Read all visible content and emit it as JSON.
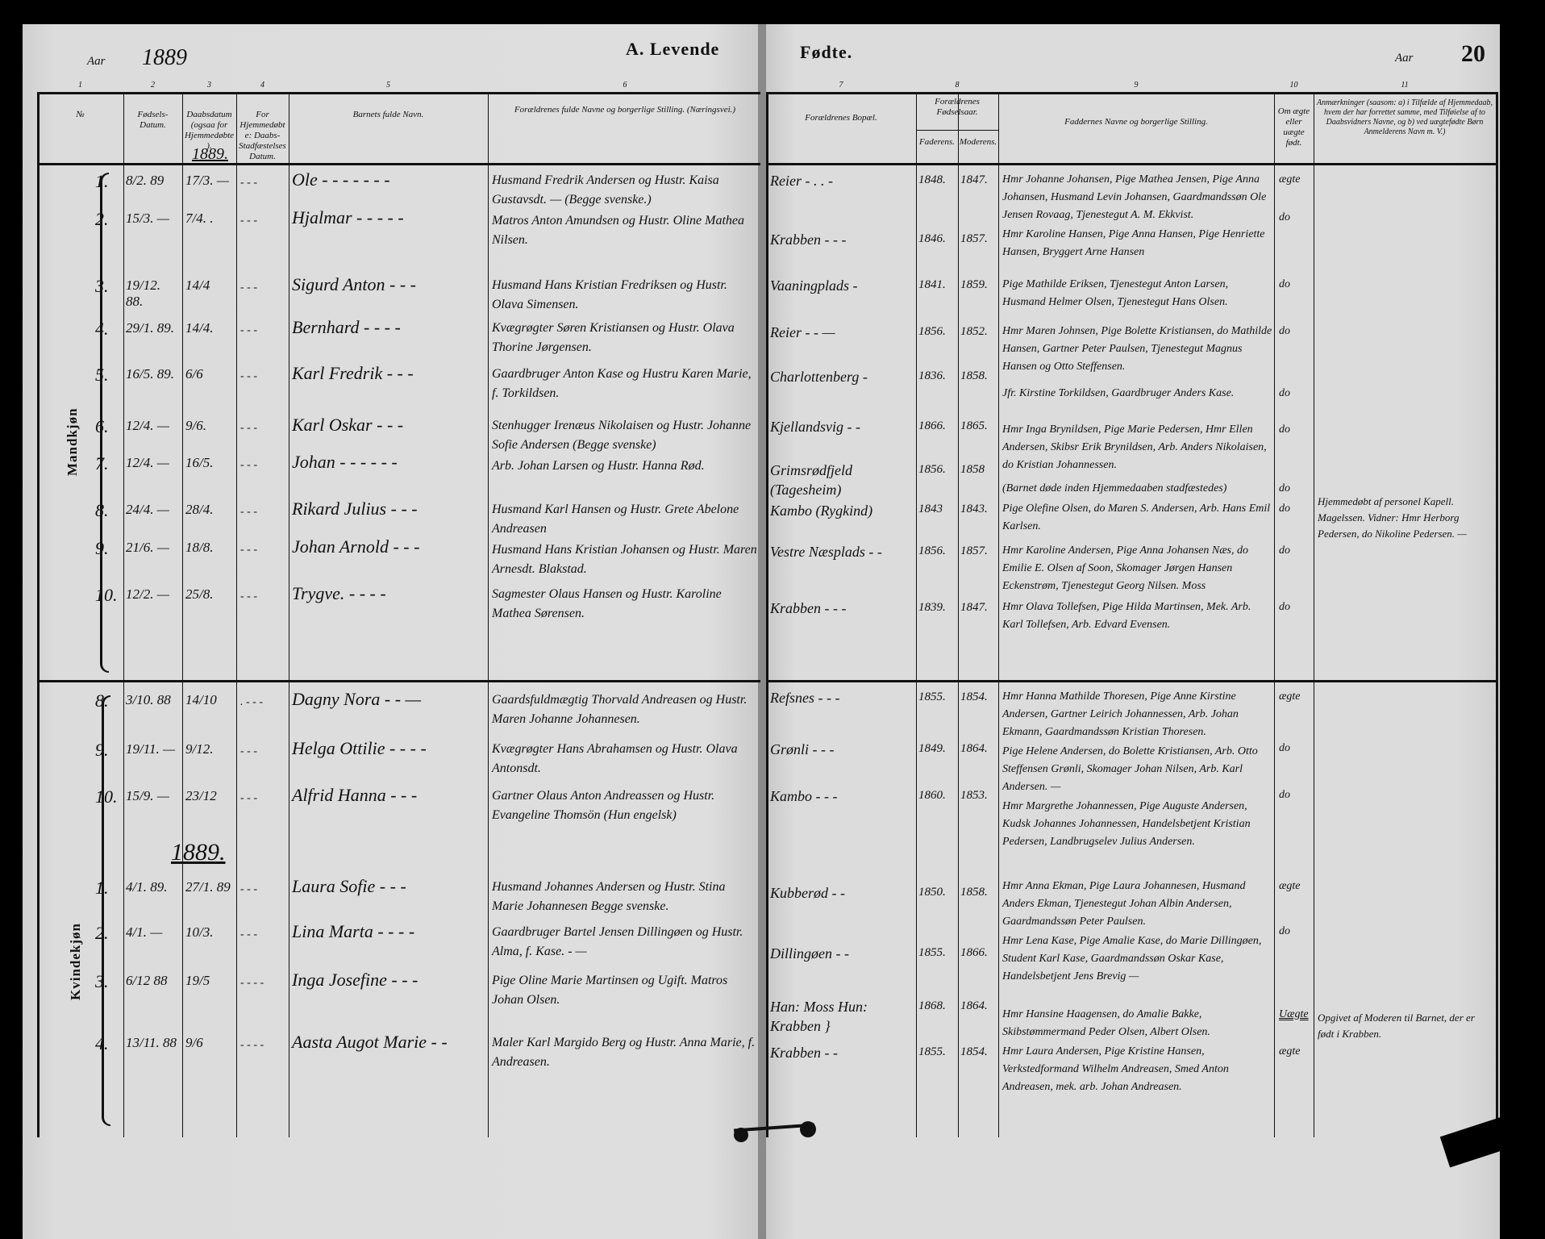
{
  "header": {
    "aar_label_left": "Aar",
    "year_left": "1889",
    "title_left": "A. Levende",
    "title_right": "Fødte.",
    "aar_label_right": "Aar",
    "page_number": "20"
  },
  "columns_left": [
    {
      "number": "1",
      "label": "№"
    },
    {
      "number": "2",
      "label": "Fødsels-Datum."
    },
    {
      "number": "3",
      "label": "Daabsdatum (ogsaa for Hjemmedøbte)."
    },
    {
      "number": "4",
      "label": "For Hjemmedøbte: Daabs-Stadfæstelses Datum."
    },
    {
      "number": "5",
      "label": "Barnets fulde Navn."
    },
    {
      "number": "6",
      "label": "Forældrenes fulde Navne og borgerlige Stilling. (Næringsvei.)"
    }
  ],
  "columns_right": [
    {
      "number": "7",
      "label": "Forældrenes Bopæl."
    },
    {
      "number": "8",
      "label": "Forældrenes Fødselsaar."
    },
    {
      "number": "",
      "label": "Faderens."
    },
    {
      "number": "",
      "label": "Moderens."
    },
    {
      "number": "9",
      "label": "Faddernes Navne og borgerlige Stilling."
    },
    {
      "number": "10",
      "label": "Om ægte eller uægte født."
    },
    {
      "number": "11",
      "label": "Anmærkninger (saasom: a) i Tilfælde af Hjemmedaab, hvem der har forrettet samme, med Tilføielse af to Daabsvidners Navne, og b) ved uægtefødte Børn Anmelderens Navn m. V.)"
    }
  ],
  "sections": {
    "male_label": "Mandkjøn",
    "female_label": "Kvindekjøn",
    "year_note_top": "1889.",
    "year_note_female": "1889."
  },
  "entries": [
    {
      "no": "1.",
      "birth": "8/2. 89",
      "baptism": "17/3. —",
      "confirm": "- - -",
      "name": "Ole - - - - - - -",
      "parents": "Husmand Fredrik Andersen og Hustr. Kaisa Gustavsdt. — (Begge svenske.)",
      "residence": "Reier - . . -",
      "father_year": "1848.",
      "mother_year": "1847.",
      "sponsors": "Hmr Johanne Johansen, Pige Mathea Jensen, Pige Anna Johansen, Husmand Levin Johansen, Gaardmandssøn Ole Jensen Rovaag, Tjenestegut A. M. Ekkvist.",
      "legitimacy": "ægte",
      "remarks": ""
    },
    {
      "no": "2.",
      "birth": "15/3. —",
      "baptism": "7/4. .",
      "confirm": "- - -",
      "name": "Hjalmar - - - - -",
      "parents": "Matros Anton Amundsen og Hustr. Oline Mathea Nilsen.",
      "residence": "Krabben - - -",
      "father_year": "1846.",
      "mother_year": "1857.",
      "sponsors": "Hmr Karoline Hansen, Pige Anna Hansen, Pige Henriette Hansen, Bryggert Arne Hansen",
      "legitimacy": "do",
      "remarks": ""
    },
    {
      "no": "3.",
      "birth": "19/12. 88.",
      "baptism": "14/4",
      "confirm": "- - -",
      "name": "Sigurd Anton - - -",
      "parents": "Husmand Hans Kristian Fredriksen og Hustr. Olava Simensen.",
      "residence": "Vaaningplads -",
      "father_year": "1841.",
      "mother_year": "1859.",
      "sponsors": "Pige Mathilde Eriksen, Tjenestegut Anton Larsen, Husmand Helmer Olsen, Tjenestegut Hans Olsen.",
      "legitimacy": "do",
      "remarks": ""
    },
    {
      "no": "4.",
      "birth": "29/1. 89.",
      "baptism": "14/4.",
      "confirm": "- - -",
      "name": "Bernhard - - - -",
      "parents": "Kvægrøgter Søren Kristiansen og Hustr. Olava Thorine Jørgensen.",
      "residence": "Reier - - —",
      "father_year": "1856.",
      "mother_year": "1852.",
      "sponsors": "Hmr Maren Johnsen, Pige Bolette Kristiansen, do Mathilde Hansen, Gartner Peter Paulsen, Tjenestegut Magnus Hansen og Otto Steffensen.",
      "legitimacy": "do",
      "remarks": ""
    },
    {
      "no": "5.",
      "birth": "16/5. 89.",
      "baptism": "6/6",
      "confirm": "- - -",
      "name": "Karl Fredrik - - -",
      "parents": "Gaardbruger Anton Kase og Hustru Karen Marie, f. Torkildsen.",
      "residence": "Charlottenberg -",
      "father_year": "1836.",
      "mother_year": "1858.",
      "sponsors": "Jfr. Kirstine Torkildsen, Gaardbruger Anders Kase.",
      "legitimacy": "do",
      "remarks": ""
    },
    {
      "no": "6.",
      "birth": "12/4. —",
      "baptism": "9/6.",
      "confirm": "- - -",
      "name": "Karl Oskar - - -",
      "parents": "Stenhugger Irenæus Nikolaisen og Hustr. Johanne Sofie Andersen (Begge svenske)",
      "residence": "Kjellandsvig - -",
      "father_year": "1866.",
      "mother_year": "1865.",
      "sponsors": "Hmr Inga Brynildsen, Pige Marie Pedersen, Hmr Ellen Andersen, Skibsr Erik Brynildsen, Arb. Anders Nikolaisen, do Kristian Johannessen.",
      "legitimacy": "do",
      "remarks": ""
    },
    {
      "no": "7.",
      "birth": "12/4. —",
      "baptism": "16/5.",
      "confirm": "- - -",
      "name": "Johan - - - - - -",
      "parents": "Arb. Johan Larsen og Hustr. Hanna Rød.",
      "residence": "Grimsrødfjeld (Tagesheim)",
      "father_year": "1856.",
      "mother_year": "1858",
      "sponsors": "(Barnet døde inden Hjemmedaaben stadfæstedes)",
      "legitimacy": "do",
      "remarks": "Hjemmedøbt af personel Kapell. Magelssen. Vidner: Hmr Herborg Pedersen, do Nikoline Pedersen. —"
    },
    {
      "no": "8.",
      "birth": "24/4. —",
      "baptism": "28/4.",
      "confirm": "- - -",
      "name": "Rikard Julius - - -",
      "parents": "Husmand Karl Hansen og Hustr. Grete Abelone Andreasen",
      "residence": "Kambo (Rygkind)",
      "father_year": "1843",
      "mother_year": "1843.",
      "sponsors": "Pige Olefine Olsen, do Maren S. Andersen, Arb. Hans Emil Karlsen.",
      "legitimacy": "do",
      "remarks": ""
    },
    {
      "no": "9.",
      "birth": "21/6. —",
      "baptism": "18/8.",
      "confirm": "- - -",
      "name": "Johan Arnold - - -",
      "parents": "Husmand Hans Kristian Johansen og Hustr. Maren Arnesdt. Blakstad.",
      "residence": "Vestre Næsplads - -",
      "father_year": "1856.",
      "mother_year": "1857.",
      "sponsors": "Hmr Karoline Andersen, Pige Anna Johansen Næs, do Emilie E. Olsen af Soon, Skomager Jørgen Hansen Eckenstrøm, Tjenestegut Georg Nilsen. Moss",
      "legitimacy": "do",
      "remarks": ""
    },
    {
      "no": "10.",
      "birth": "12/2. —",
      "baptism": "25/8.",
      "confirm": "- - -",
      "name": "Trygve. - - - -",
      "parents": "Sagmester Olaus Hansen og Hustr. Karoline Mathea Sørensen.",
      "residence": "Krabben - - -",
      "father_year": "1839.",
      "mother_year": "1847.",
      "sponsors": "Hmr Olava Tollefsen, Pige Hilda Martinsen, Mek. Arb. Karl Tollefsen, Arb. Edvard Evensen.",
      "legitimacy": "do",
      "remarks": ""
    },
    {
      "no": "8.",
      "birth": "3/10. 88",
      "baptism": "14/10",
      "confirm": ". - - -",
      "name": "Dagny Nora - - —",
      "parents": "Gaardsfuldmægtig Thorvald Andreasen og Hustr. Maren Johanne Johannesen.",
      "residence": "Refsnes - - -",
      "father_year": "1855.",
      "mother_year": "1854.",
      "sponsors": "Hmr Hanna Mathilde Thoresen, Pige Anne Kirstine Andersen, Gartner Leirich Johannessen, Arb. Johan Ekmann, Gaardmandssøn Kristian Thoresen.",
      "legitimacy": "ægte",
      "remarks": ""
    },
    {
      "no": "9.",
      "birth": "19/11. —",
      "baptism": "9/12.",
      "confirm": "- - -",
      "name": "Helga Ottilie - - - -",
      "parents": "Kvægrøgter Hans Abrahamsen og Hustr. Olava Antonsdt.",
      "residence": "Grønli - - -",
      "father_year": "1849.",
      "mother_year": "1864.",
      "sponsors": "Pige Helene Andersen, do Bolette Kristiansen, Arb. Otto Steffensen Grønli, Skomager Johan Nilsen, Arb. Karl Andersen. —",
      "legitimacy": "do",
      "remarks": ""
    },
    {
      "no": "10.",
      "birth": "15/9. —",
      "baptism": "23/12",
      "confirm": "- - -",
      "name": "Alfrid Hanna - - -",
      "parents": "Gartner Olaus Anton Andreassen og Hustr. Evangeline Thomsön (Hun engelsk)",
      "residence": "Kambo - - -",
      "father_year": "1860.",
      "mother_year": "1853.",
      "sponsors": "Hmr Margrethe Johannessen, Pige Auguste Andersen, Kudsk Johannes Johannessen, Handelsbetjent Kristian Pedersen, Landbrugselev Julius Andersen.",
      "legitimacy": "do",
      "remarks": ""
    },
    {
      "no": "1.",
      "birth": "4/1. 89.",
      "baptism": "27/1. 89",
      "confirm": "- - -",
      "name": "Laura Sofie - - -",
      "parents": "Husmand Johannes Andersen og Hustr. Stina Marie Johannesen Begge svenske.",
      "residence": "Kubberød - -",
      "father_year": "1850.",
      "mother_year": "1858.",
      "sponsors": "Hmr Anna Ekman, Pige Laura Johannesen, Husmand Anders Ekman, Tjenestegut Johan Albin Andersen, Gaardmandssøn Peter Paulsen.",
      "legitimacy": "ægte",
      "remarks": ""
    },
    {
      "no": "2.",
      "birth": "4/1. —",
      "baptism": "10/3.",
      "confirm": "- - -",
      "name": "Lina Marta - - - -",
      "parents": "Gaardbruger Bartel Jensen Dillingøen og Hustr. Alma, f. Kase. - —",
      "residence": "Dillingøen - -",
      "father_year": "1855.",
      "mother_year": "1866.",
      "sponsors": "Hmr Lena Kase, Pige Amalie Kase, do Marie Dillingøen, Student Karl Kase, Gaardmandssøn Oskar Kase, Handelsbetjent Jens Brevig —",
      "legitimacy": "do",
      "remarks": ""
    },
    {
      "no": "3.",
      "birth": "6/12 88",
      "baptism": "19/5",
      "confirm": "- - - -",
      "name": "Inga Josefine - - -",
      "parents": "Pige Oline Marie Martinsen og Ugift. Matros Johan Olsen.",
      "residence": "Han: Moss  Hun: Krabben }",
      "father_year": "1868.",
      "mother_year": "1864.",
      "sponsors": "Hmr Hansine Haagensen, do Amalie Bakke, Skibstømmermand Peder Olsen, Albert Olsen.",
      "legitimacy": "Uægte",
      "remarks": "Opgivet af Moderen til Barnet, der er født i Krabben."
    },
    {
      "no": "4.",
      "birth": "13/11. 88",
      "baptism": "9/6",
      "confirm": "- - - -",
      "name": "Aasta Augot Marie - -",
      "parents": "Maler Karl Margido Berg og Hustr. Anna Marie, f. Andreasen.",
      "residence": "Krabben - -",
      "father_year": "1855.",
      "mother_year": "1854.",
      "sponsors": "Hmr Laura Andersen, Pige Kristine Hansen, Verkstedformand Wilhelm Andreasen, Smed Anton Andreasen, mek. arb. Johan Andreasen.",
      "legitimacy": "ægte",
      "remarks": ""
    }
  ]
}
